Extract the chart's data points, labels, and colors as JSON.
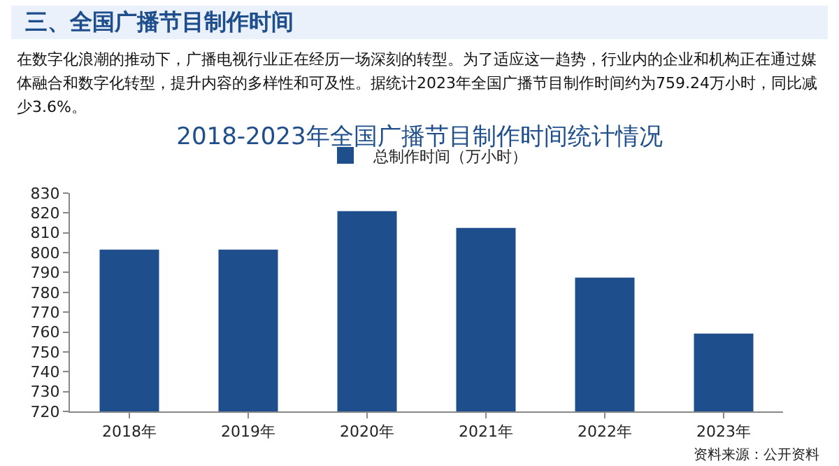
{
  "chart_data": {
    "type": "bar",
    "title": "2018-2023年全国广播节目制作时间统计情况",
    "annotations": [
      "三、全国广播节目制作时间",
      "在数字化浪潮的推动下，广播电视行业正在经历一场深刻的转型。为了适应这一趋势，行业内的企业和机构正在通过媒体融合和数字化转型，提升内容的多样性和可及性。据统计2023年全国广播节目制作时间约为759.24万小时，同比减少3.6%。",
      "资料来源：公开资料"
    ],
    "categories": [
      "2018年",
      "2019年",
      "2020年",
      "2021年",
      "2022年",
      "2023年"
    ],
    "series": [
      {
        "name": "总制作时间（万小时）",
        "color": "#1f4e8c",
        "values": [
          801.5,
          801.5,
          820.9,
          812.5,
          787.4,
          759.2
        ]
      }
    ],
    "ylim": [
      720,
      830
    ],
    "yticks": [
      720,
      730,
      740,
      750,
      760,
      770,
      780,
      790,
      800,
      810,
      820,
      830
    ],
    "grid": false,
    "legend": "top"
  }
}
